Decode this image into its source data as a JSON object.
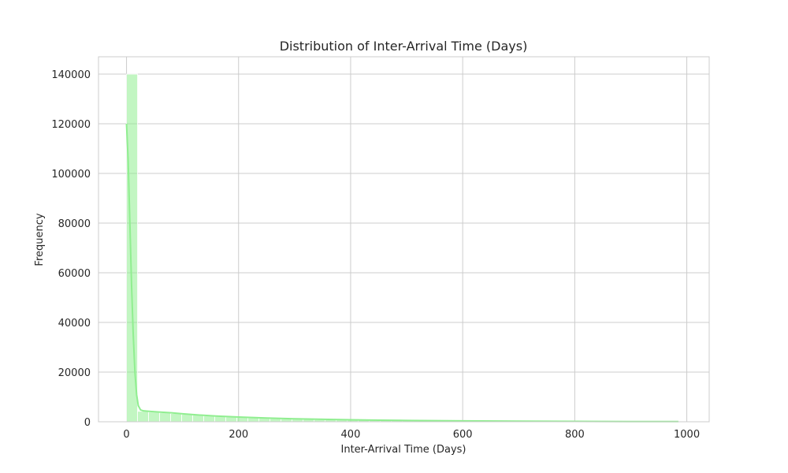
{
  "chart_data": {
    "type": "bar",
    "title": "Distribution of Inter-Arrival Time (Days)",
    "xlabel": "Inter-Arrival Time (Days)",
    "ylabel": "Frequency",
    "xlim": [
      -50,
      1040
    ],
    "ylim": [
      0,
      147000
    ],
    "x_ticks": [
      0,
      200,
      400,
      600,
      800,
      1000
    ],
    "y_ticks": [
      0,
      20000,
      40000,
      60000,
      80000,
      100000,
      120000,
      140000
    ],
    "grid": true,
    "bin_width": 19.7,
    "bin_start": 0,
    "histogram": [
      140000,
      4200,
      3900,
      3600,
      3300,
      3000,
      2700,
      2400,
      2150,
      1950,
      1750,
      1600,
      1450,
      1300,
      1150,
      1050,
      950,
      850,
      780,
      720,
      660,
      610,
      560,
      520,
      480,
      440,
      400,
      370,
      340,
      315,
      290,
      270,
      250,
      232,
      215,
      200,
      186,
      173,
      161,
      150,
      140,
      130,
      121,
      112,
      104,
      96,
      89,
      82,
      76,
      70
    ],
    "kde": {
      "x": [
        0,
        3,
        6,
        9,
        12,
        15,
        18,
        21,
        25,
        30,
        40,
        60,
        80,
        100,
        130,
        160,
        200,
        250,
        300,
        350,
        400,
        450,
        500,
        600,
        700,
        800,
        900,
        985
      ],
      "y": [
        120000,
        105000,
        80000,
        55000,
        35000,
        20000,
        11000,
        6500,
        4800,
        4400,
        4200,
        3900,
        3600,
        3200,
        2700,
        2300,
        1900,
        1500,
        1200,
        1000,
        800,
        650,
        520,
        360,
        240,
        160,
        100,
        70
      ]
    },
    "color": "#90ee90"
  }
}
